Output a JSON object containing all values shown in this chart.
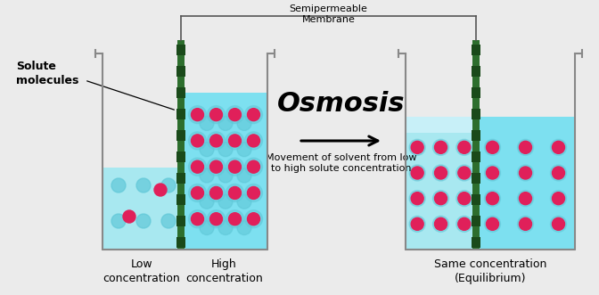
{
  "bg_color": "#ebebeb",
  "title": "Osmosis",
  "subtitle_line1": "Movement of solvent from low",
  "subtitle_line2": "to high solute concentration",
  "membrane_label": "Semipermeable\nMembrane",
  "solute_label": "Solute\nmolecules",
  "left_low_label": "Low\nconcentration",
  "left_high_label": "High\nconcentration",
  "right_label": "Same concentration\n(Equilibrium)",
  "water_color_left": "#a8e8f0",
  "water_color_right": "#7de0f0",
  "water_color_eq_top": "#d8f4f8",
  "membrane_color": "#2d6e2d",
  "dot_color_red": "#e0205a",
  "dot_color_teal": "#60c8d8",
  "beaker_color": "#888888",
  "arrow_color": "#111111",
  "label_color": "#222222",
  "bracket_color": "#555555"
}
